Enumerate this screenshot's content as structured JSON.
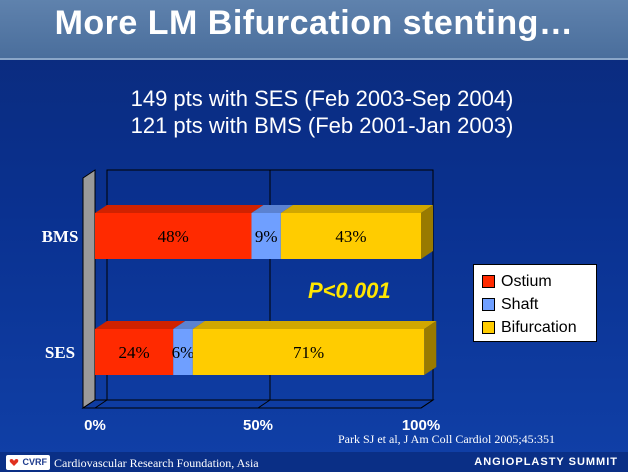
{
  "title": "More LM Bifurcation stenting…",
  "subtitle_lines": [
    "149 pts with SES (Feb 2003-Sep 2004)",
    "121 pts with BMS (Feb 2001-Jan 2003)"
  ],
  "chart_data": {
    "type": "bar",
    "orientation": "horizontal",
    "stacked": true,
    "percent_stacked": true,
    "categories": [
      "BMS",
      "SES"
    ],
    "series": [
      {
        "name": "Ostium",
        "values": [
          48,
          24
        ],
        "labels": [
          "48%",
          "24%"
        ],
        "color": "#ff2a00"
      },
      {
        "name": "Shaft",
        "values": [
          9,
          6
        ],
        "labels": [
          "9%",
          "6%"
        ],
        "color": "#6f9fff"
      },
      {
        "name": "Bifurcation",
        "values": [
          43,
          71
        ],
        "labels": [
          "43%",
          "71%"
        ],
        "color": "#ffcc00"
      }
    ],
    "xticks": [
      "0%",
      "50%",
      "100%"
    ],
    "xlim": [
      0,
      100
    ],
    "annotation": "P<0.001",
    "legend_position": "right",
    "grid": true
  },
  "citation": "Park SJ et al, J Am Coll Cardiol 2005;45:351",
  "footer": {
    "logo_text": "CVRF",
    "organization": "Cardiovascular Research Foundation, Asia",
    "event": "ANGIOPLASTY SUMMIT"
  }
}
